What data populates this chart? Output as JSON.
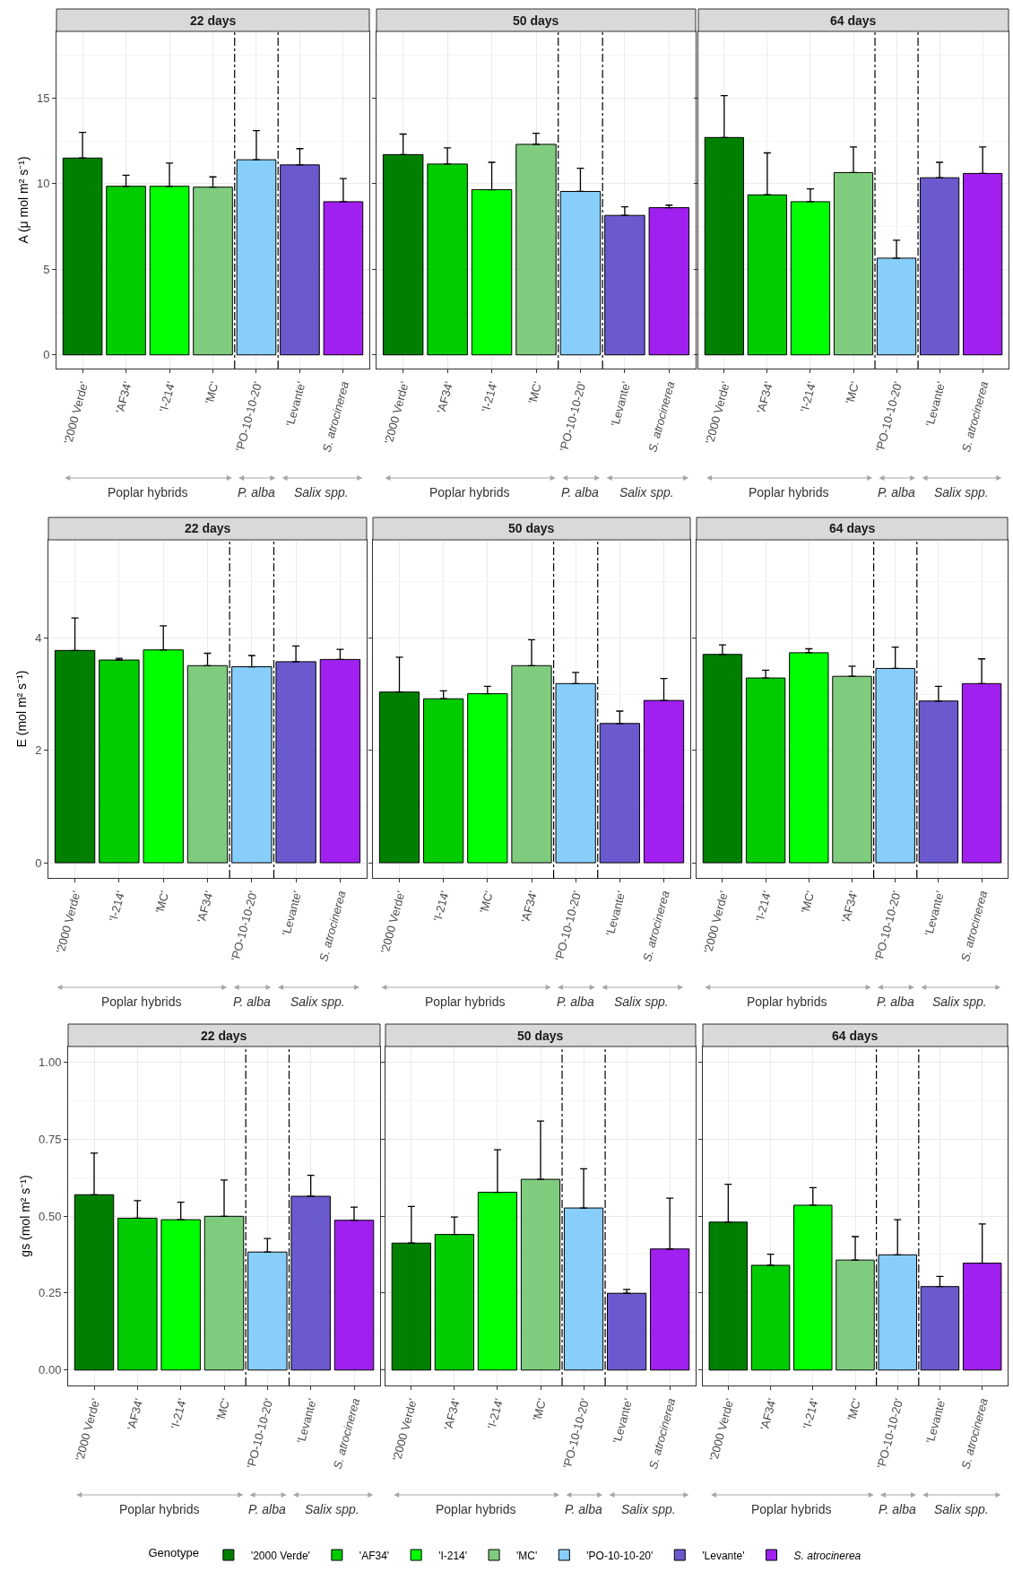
{
  "chart_data": [
    {
      "type": "bar",
      "title": "22 days",
      "ylabel": "A (μ mol m² s⁻¹)",
      "categories": [
        "'2000 Verde'",
        "'AF34'",
        "'I-214'",
        "'MC'",
        "'PO-10-10-20'",
        "'Levante'",
        "S. atrocinerea"
      ],
      "values": [
        11.5,
        9.85,
        9.85,
        9.8,
        11.4,
        11.1,
        8.95
      ],
      "errors": [
        [
          11.5,
          13.0
        ],
        [
          9.85,
          10.5
        ],
        [
          9.85,
          11.2
        ],
        [
          9.8,
          10.4
        ],
        [
          11.4,
          13.1
        ],
        [
          11.1,
          12.05
        ],
        [
          8.95,
          10.3
        ]
      ],
      "colors": [
        "#008000",
        "#00cc00",
        "#00ff00",
        "#7fcc7f",
        "#87cefa",
        "#6a5acd",
        "#a020f0"
      ],
      "ylim": [
        -0.8,
        18.9
      ],
      "yticks": [
        0,
        5,
        10,
        15
      ],
      "grid": true,
      "annotations": [
        "Poplar hybrids",
        "P. alba",
        "Salix spp."
      ]
    },
    {
      "type": "bar",
      "title": "50 days",
      "categories": [
        "'2000 Verde'",
        "'AF34'",
        "'I-214'",
        "'MC'",
        "'PO-10-10-20'",
        "'Levante'",
        "S. atrocinerea"
      ],
      "values": [
        11.7,
        11.15,
        9.65,
        12.3,
        9.55,
        8.15,
        8.6
      ],
      "errors": [
        [
          11.7,
          12.9
        ],
        [
          11.15,
          12.1
        ],
        [
          9.65,
          11.25
        ],
        [
          12.3,
          12.95
        ],
        [
          9.55,
          10.9
        ],
        [
          8.15,
          8.65
        ],
        [
          8.6,
          8.75
        ]
      ],
      "colors": [
        "#008000",
        "#00cc00",
        "#00ff00",
        "#7fcc7f",
        "#87cefa",
        "#6a5acd",
        "#a020f0"
      ],
      "ylim": [
        -0.8,
        18.9
      ],
      "yticks": [
        0,
        5,
        10,
        15
      ],
      "grid": true,
      "tick_labels": "x",
      "annotations": [
        "Poplar hybrids",
        "P. alba",
        "Salix spp."
      ]
    },
    {
      "type": "bar",
      "title": "64 days",
      "categories": [
        "'2000 Verde'",
        "'AF34'",
        "'I-214'",
        "'MC'",
        "'PO-10-10-20'",
        "'Levante'",
        "S. atrocinerea"
      ],
      "values": [
        12.7,
        9.35,
        8.95,
        10.65,
        5.65,
        10.35,
        10.6
      ],
      "errors": [
        [
          12.7,
          15.15
        ],
        [
          9.35,
          11.8
        ],
        [
          8.95,
          9.7
        ],
        [
          10.65,
          12.15
        ],
        [
          5.65,
          6.7
        ],
        [
          10.35,
          11.25
        ],
        [
          10.6,
          12.15
        ]
      ],
      "colors": [
        "#008000",
        "#00cc00",
        "#00ff00",
        "#7fcc7f",
        "#87cefa",
        "#6a5acd",
        "#a020f0"
      ],
      "ylim": [
        -0.8,
        18.9
      ],
      "yticks": [
        0,
        5,
        10,
        15
      ],
      "grid": true,
      "tick_labels": "x",
      "annotations": [
        "Poplar hybrids",
        "P. alba",
        "Salix spp."
      ]
    },
    {
      "type": "bar",
      "title": "22 days",
      "ylabel": "E (mol m² s⁻¹)",
      "categories": [
        "'2000 Verde'",
        "'I-214'",
        "'MC'",
        "'AF34'",
        "'PO-10-10-20'",
        "'Levante'",
        "S. atrocinerea"
      ],
      "values": [
        3.78,
        3.61,
        3.79,
        3.51,
        3.49,
        3.58,
        3.62
      ],
      "errors": [
        [
          3.78,
          4.36
        ],
        [
          3.61,
          3.64
        ],
        [
          3.79,
          4.22
        ],
        [
          3.51,
          3.73
        ],
        [
          3.49,
          3.69
        ],
        [
          3.58,
          3.86
        ],
        [
          3.62,
          3.8
        ]
      ],
      "colors": [
        "#008000",
        "#00cc00",
        "#00ff00",
        "#7fcc7f",
        "#87cefa",
        "#6a5acd",
        "#a020f0"
      ],
      "ylim": [
        -0.27,
        5.75
      ],
      "yticks": [
        0,
        2,
        4
      ],
      "grid": true,
      "annotations": [
        "Poplar hybrids",
        "P. alba",
        "Salix spp."
      ]
    },
    {
      "type": "bar",
      "title": "50 days",
      "categories": [
        "'2000 Verde'",
        "'I-214'",
        "'MC'",
        "'AF34'",
        "'PO-10-10-20'",
        "'Levante'",
        "S. atrocinerea"
      ],
      "values": [
        3.04,
        2.92,
        3.01,
        3.51,
        3.19,
        2.48,
        2.89
      ],
      "errors": [
        [
          3.04,
          3.66
        ],
        [
          2.92,
          3.06
        ],
        [
          3.01,
          3.14
        ],
        [
          3.51,
          3.97
        ],
        [
          3.19,
          3.39
        ],
        [
          2.48,
          2.7
        ],
        [
          2.89,
          3.28
        ]
      ],
      "colors": [
        "#008000",
        "#00cc00",
        "#00ff00",
        "#7fcc7f",
        "#87cefa",
        "#6a5acd",
        "#a020f0"
      ],
      "ylim": [
        -0.27,
        5.75
      ],
      "yticks": [
        0,
        2,
        4
      ],
      "grid": true,
      "tick_labels": "x",
      "annotations": [
        "Poplar hybrids",
        "P. alba",
        "Salix spp."
      ]
    },
    {
      "type": "bar",
      "title": "64 days",
      "categories": [
        "'2000 Verde'",
        "'I-214'",
        "'MC'",
        "'AF34'",
        "'PO-10-10-20'",
        "'Levante'",
        "S. atrocinerea"
      ],
      "values": [
        3.71,
        3.29,
        3.74,
        3.32,
        3.46,
        2.88,
        3.19
      ],
      "errors": [
        [
          3.71,
          3.88
        ],
        [
          3.29,
          3.43
        ],
        [
          3.74,
          3.81
        ],
        [
          3.32,
          3.5
        ],
        [
          3.46,
          3.84
        ],
        [
          2.88,
          3.14
        ],
        [
          3.19,
          3.63
        ]
      ],
      "colors": [
        "#008000",
        "#00cc00",
        "#00ff00",
        "#7fcc7f",
        "#87cefa",
        "#6a5acd",
        "#a020f0"
      ],
      "ylim": [
        -0.27,
        5.75
      ],
      "yticks": [
        0,
        2,
        4
      ],
      "grid": true,
      "tick_labels": "x",
      "annotations": [
        "Poplar hybrids",
        "P. alba",
        "Salix spp."
      ]
    },
    {
      "type": "bar",
      "title": "22 days",
      "ylabel": "gs (mol m² s⁻¹)",
      "categories": [
        "'2000 Verde'",
        "'AF34'",
        "'I-214'",
        "'MC'",
        "'PO-10-10-20'",
        "'Levante'",
        "S. atrocinerea"
      ],
      "values": [
        0.569,
        0.493,
        0.488,
        0.499,
        0.383,
        0.564,
        0.486
      ],
      "errors": [
        [
          0.569,
          0.704
        ],
        [
          0.493,
          0.55
        ],
        [
          0.488,
          0.545
        ],
        [
          0.499,
          0.617
        ],
        [
          0.383,
          0.427
        ],
        [
          0.564,
          0.632
        ],
        [
          0.486,
          0.529
        ]
      ],
      "colors": [
        "#008000",
        "#00cc00",
        "#00ff00",
        "#7fcc7f",
        "#87cefa",
        "#6a5acd",
        "#a020f0"
      ],
      "ylim": [
        -0.05,
        1.05
      ],
      "yticks": [
        {
          "value": 0,
          "label": "0.00"
        },
        {
          "value": 0.25,
          "label": "0.25"
        },
        {
          "value": 0.5,
          "label": "0.50"
        },
        {
          "value": 0.75,
          "label": "0.75"
        },
        {
          "value": 1,
          "label": "1.00"
        }
      ],
      "grid": true,
      "annotations": [
        "Poplar hybrids",
        "P. alba",
        "Salix spp."
      ]
    },
    {
      "type": "bar",
      "title": "50 days",
      "categories": [
        "'2000 Verde'",
        "'AF34'",
        "'I-214'",
        "'MC'",
        "'PO-10-10-20'",
        "'Levante'",
        "S. atrocinerea"
      ],
      "values": [
        0.412,
        0.44,
        0.577,
        0.619,
        0.526,
        0.249,
        0.393
      ],
      "errors": [
        [
          0.412,
          0.531
        ],
        [
          0.44,
          0.497
        ],
        [
          0.577,
          0.715
        ],
        [
          0.619,
          0.808
        ],
        [
          0.526,
          0.653
        ],
        [
          0.249,
          0.262
        ],
        [
          0.393,
          0.558
        ]
      ],
      "colors": [
        "#008000",
        "#00cc00",
        "#00ff00",
        "#7fcc7f",
        "#87cefa",
        "#6a5acd",
        "#a020f0"
      ],
      "ylim": [
        -0.05,
        1.05
      ],
      "yticks": [
        0,
        0.25,
        0.5,
        0.75,
        1
      ],
      "grid": true,
      "tick_labels": "x",
      "annotations": [
        "Poplar hybrids",
        "P. alba",
        "Salix spp."
      ]
    },
    {
      "type": "bar",
      "title": "64 days",
      "categories": [
        "'2000 Verde'",
        "'AF34'",
        "'I-214'",
        "'MC'",
        "'PO-10-10-20'",
        "'Levante'",
        "S. atrocinerea"
      ],
      "series": [
        {
          "name": "'2000 Verde'",
          "color": "#008000",
          "values": [
            0.48,
            null,
            null,
            null,
            null,
            null,
            null
          ],
          "errors": [
            [
              0.48,
              0.603
            ],
            null,
            null,
            null,
            null,
            null,
            null
          ]
        },
        {
          "name": "'AF34'",
          "color": "#00cc00",
          "values": [
            null,
            0.34,
            null,
            null,
            null,
            null,
            null
          ],
          "errors": [
            null,
            [
              0.34,
              0.376
            ],
            null,
            null,
            null,
            null,
            null
          ]
        },
        {
          "name": "'I-214'",
          "color": "#00ff00",
          "values": [
            null,
            null,
            0.535,
            null,
            null,
            null,
            null
          ],
          "errors": [
            null,
            null,
            [
              0.535,
              0.592
            ],
            null,
            null,
            null,
            null
          ]
        },
        {
          "name": "'MC'",
          "color": "#7fcc7f",
          "values": [
            null,
            null,
            null,
            0.357,
            null,
            null,
            null
          ],
          "errors": [
            null,
            null,
            null,
            [
              0.357,
              0.433
            ],
            null,
            null,
            null
          ]
        },
        {
          "name": "'PO-10-10-20'",
          "color": "#87cefa",
          "values": [
            null,
            null,
            null,
            null,
            0.374,
            null,
            null
          ],
          "errors": [
            null,
            null,
            null,
            null,
            [
              0.374,
              0.488
            ],
            null,
            null
          ]
        },
        {
          "name": "'Levante'",
          "color": "#6a5acd",
          "values": [
            null,
            null,
            null,
            null,
            null,
            0.271,
            null
          ],
          "errors": [
            null,
            null,
            null,
            null,
            null,
            [
              0.271,
              0.304
            ],
            null
          ]
        },
        {
          "name": "S. atrocinerea",
          "color": "#a020f0",
          "values": [
            null,
            null,
            null,
            null,
            null,
            null,
            0.347
          ],
          "errors": [
            null,
            null,
            null,
            null,
            null,
            null,
            [
              0.347,
              0.474
            ]
          ]
        }
      ],
      "ylim": [
        -0.05,
        1.05
      ],
      "yticks": [
        0,
        0.25,
        0.5,
        0.75,
        1
      ],
      "grid": true,
      "tick_labels": "x",
      "annotations": [
        "Poplar hybrids",
        "P. alba",
        "Salix spp."
      ],
      "legend": "bottom",
      "legend_title": "Genotype"
    }
  ]
}
